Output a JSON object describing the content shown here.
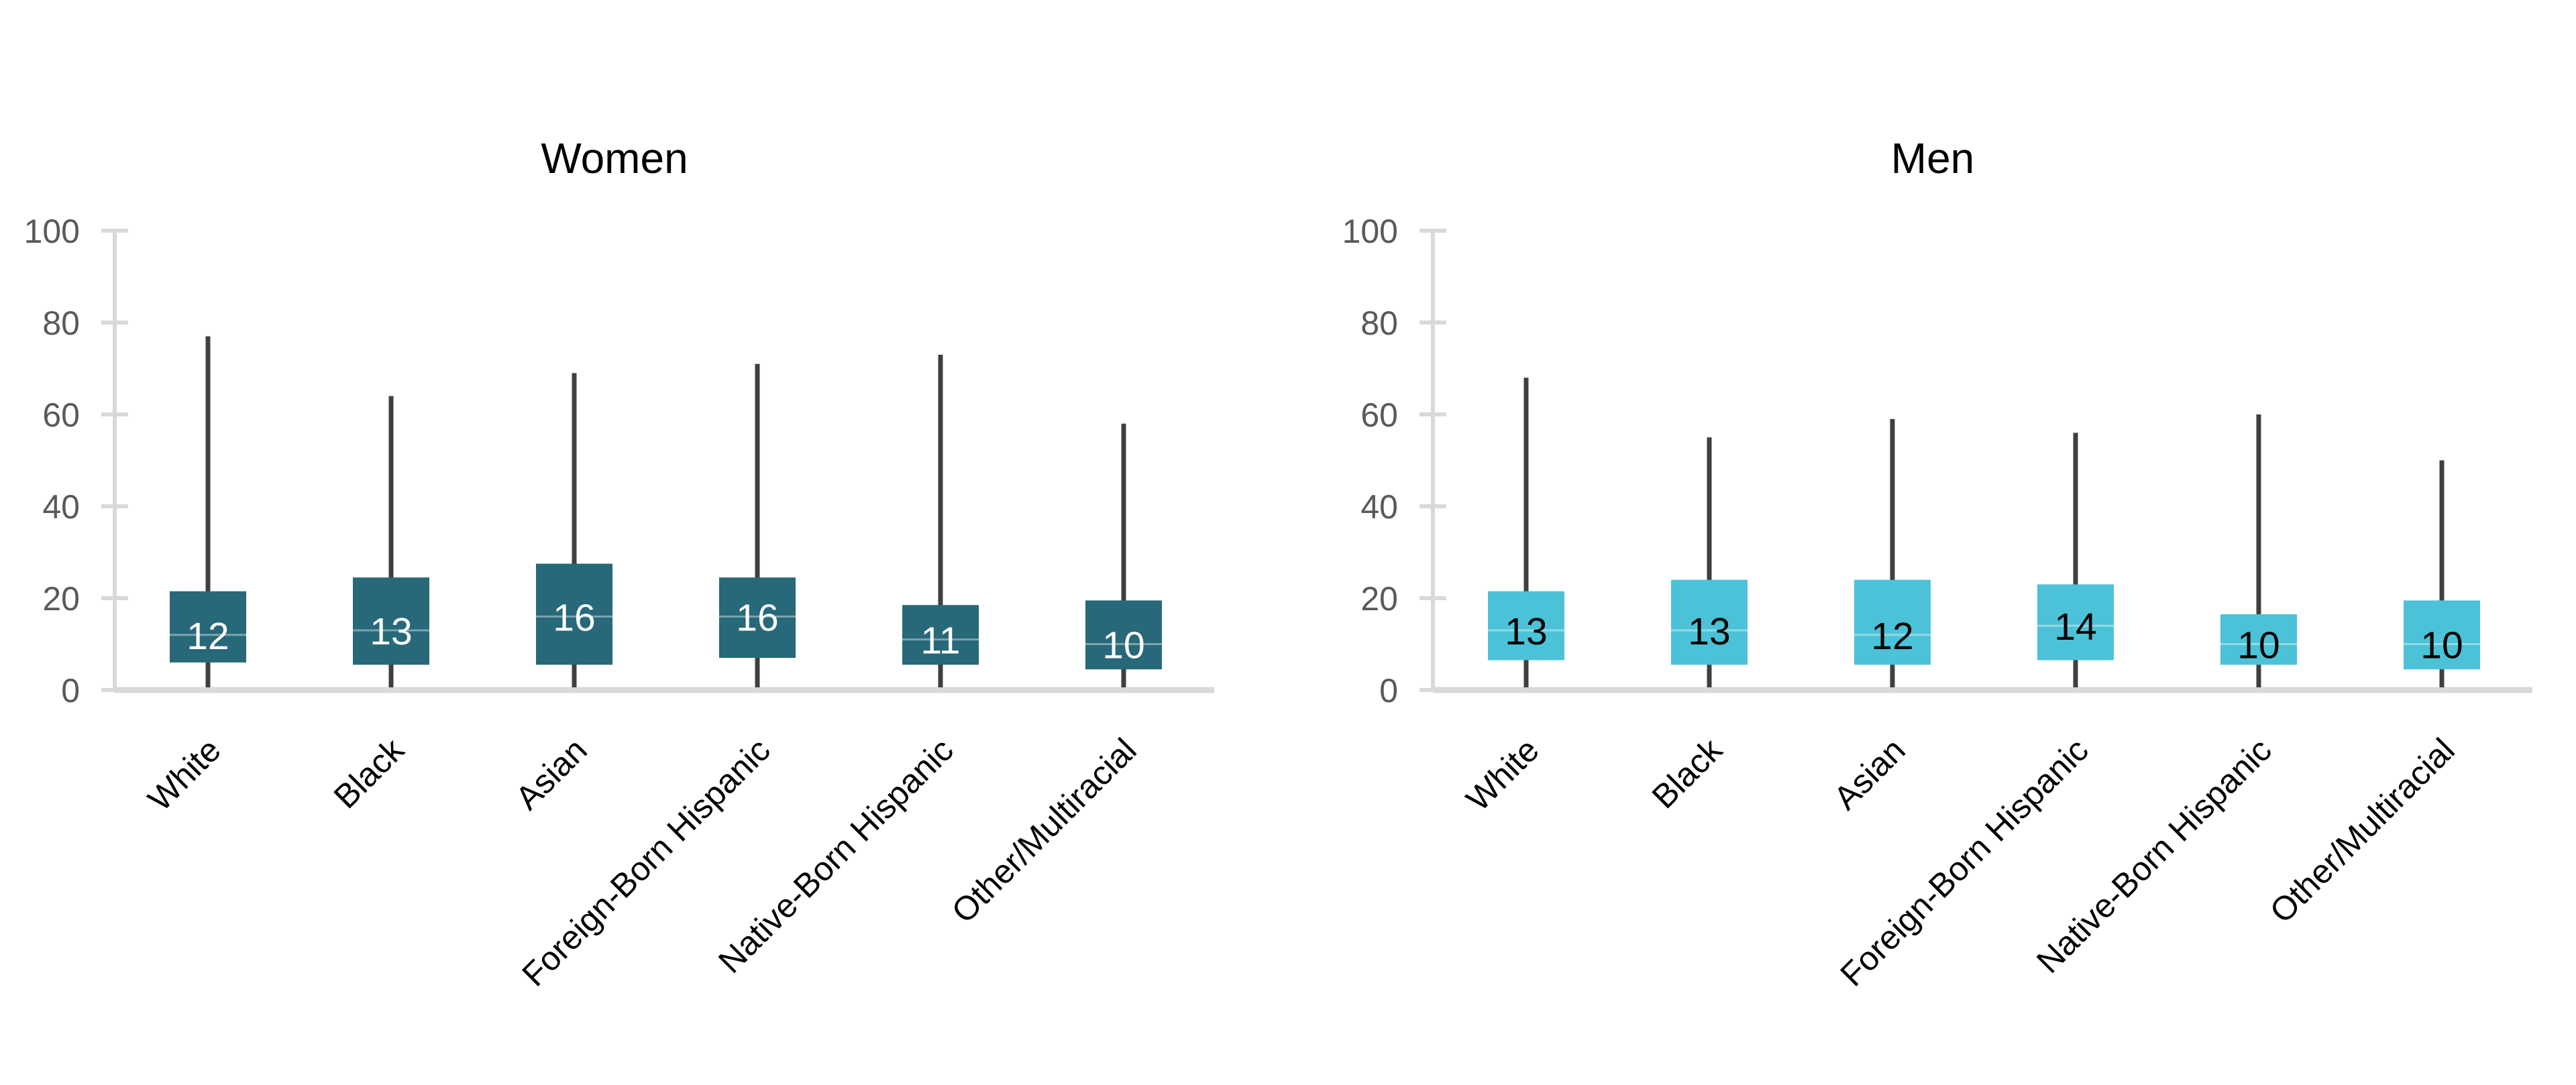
{
  "figure": {
    "kind": "paired-boxplot-figure",
    "background": "#ffffff"
  },
  "colors": {
    "women_box": "#276879",
    "men_box": "#4bc2d7",
    "women_value_label": "#ffffff",
    "men_value_label": "#000000",
    "whisker": "#3f3f3f",
    "axis_line": "#d9d9d9",
    "tick_label": "#595959",
    "title_text": "#000000",
    "category_label": "#000000",
    "median_line": "rgba(255,255,255,0.4)"
  },
  "chart_data": [
    {
      "type": "box",
      "title": "Women",
      "categories": [
        "White",
        "Black",
        "Asian",
        "Foreign-Born Hispanic",
        "Native-Born Hispanic",
        "Other/Multiracial"
      ],
      "medians": [
        12,
        13,
        16,
        16,
        11,
        10
      ],
      "box_low": [
        6,
        5.5,
        5.5,
        7,
        5.5,
        4.5
      ],
      "box_high": [
        21.5,
        24.5,
        27.5,
        24.5,
        18.5,
        19.5
      ],
      "whisker_low": 0,
      "whisker_high": [
        77,
        64,
        69,
        71,
        73,
        58
      ],
      "xlabel": "",
      "ylabel": "",
      "ylim": [
        0,
        100
      ],
      "yticks": [
        0,
        20,
        40,
        60,
        80,
        100
      ],
      "grid": false,
      "legend": "none",
      "box_color_key": "women_box",
      "value_label_color_key": "women_value_label"
    },
    {
      "type": "box",
      "title": "Men",
      "categories": [
        "White",
        "Black",
        "Asian",
        "Foreign-Born Hispanic",
        "Native-Born Hispanic",
        "Other/Multiracial"
      ],
      "medians": [
        13,
        13,
        12,
        14,
        10,
        10
      ],
      "box_low": [
        6.5,
        5.5,
        5.5,
        6.5,
        5.5,
        4.5
      ],
      "box_high": [
        21.5,
        24,
        24,
        23,
        16.5,
        19.5
      ],
      "whisker_low": 0,
      "whisker_high": [
        68,
        55,
        59,
        56,
        60,
        50
      ],
      "xlabel": "",
      "ylabel": "",
      "ylim": [
        0,
        100
      ],
      "yticks": [
        0,
        20,
        40,
        60,
        80,
        100
      ],
      "grid": false,
      "legend": "none",
      "box_color_key": "men_box",
      "value_label_color_key": "men_value_label"
    }
  ]
}
